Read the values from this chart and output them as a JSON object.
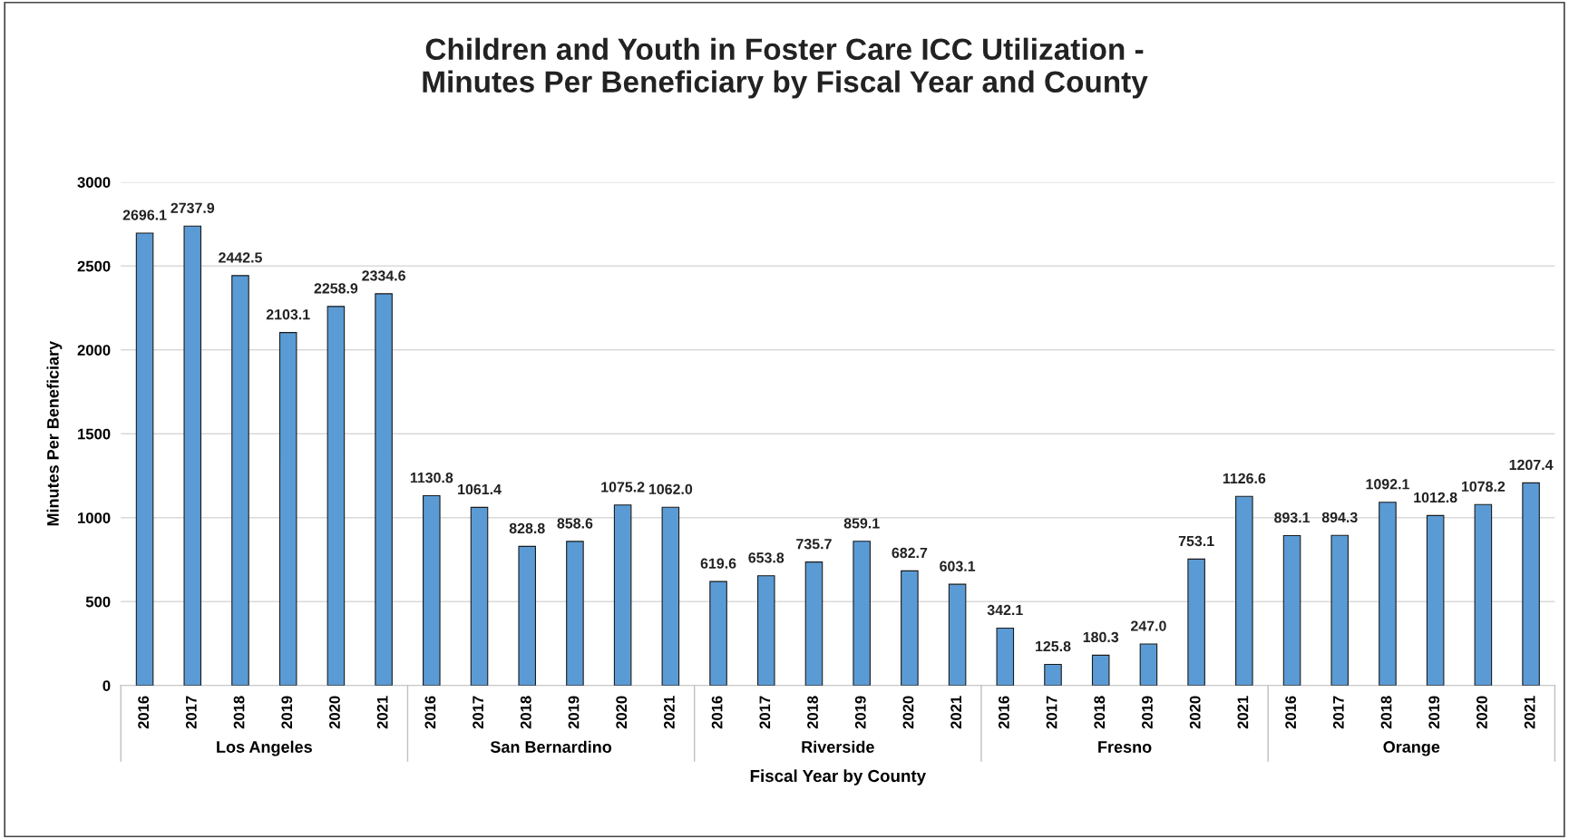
{
  "chart_data": {
    "type": "bar",
    "title": "Children and Youth in Foster Care ICC Utilization -\nMinutes Per Beneficiary by Fiscal Year and County",
    "xlabel": "Fiscal Year by County",
    "ylabel": "Minutes Per Beneficiary",
    "categories": [
      "2016",
      "2017",
      "2018",
      "2019",
      "2020",
      "2021",
      "2016",
      "2017",
      "2018",
      "2019",
      "2020",
      "2021",
      "2016",
      "2017",
      "2018",
      "2019",
      "2020",
      "2021",
      "2016",
      "2017",
      "2018",
      "2019",
      "2020",
      "2021",
      "2016",
      "2017",
      "2018",
      "2019",
      "2020",
      "2021"
    ],
    "values": [
      2696.1,
      2737.9,
      2442.5,
      2103.1,
      2258.9,
      2334.6,
      1130.8,
      1061.4,
      828.8,
      858.6,
      1075.2,
      1062.0,
      619.6,
      653.8,
      735.7,
      859.1,
      682.7,
      603.1,
      342.1,
      125.8,
      180.3,
      247.0,
      753.1,
      1126.6,
      893.1,
      894.3,
      1092.1,
      1012.8,
      1078.2,
      1207.4
    ],
    "color": "#5b9bd5",
    "annotations": [
      "Los Angeles",
      "San Bernardino",
      "Riverside",
      "Fresno",
      "Orange"
    ],
    "ylim": [
      0,
      3000
    ],
    "yticks": [
      0,
      500,
      1000,
      1500,
      2000,
      2500,
      3000
    ],
    "grid": "y",
    "value_labels": [
      "2696.1",
      "2737.9",
      "2442.5",
      "2103.1",
      "2258.9",
      "2334.6",
      "1130.8",
      "1061.4",
      "828.8",
      "858.6",
      "1075.2",
      "1062.0",
      "619.6",
      "653.8",
      "735.7",
      "859.1",
      "682.7",
      "603.1",
      "342.1",
      "125.8",
      "180.3",
      "247.0",
      "753.1",
      "1126.6",
      "893.1",
      "894.3",
      "1092.1",
      "1012.8",
      "1078.2",
      "1207.4"
    ]
  }
}
